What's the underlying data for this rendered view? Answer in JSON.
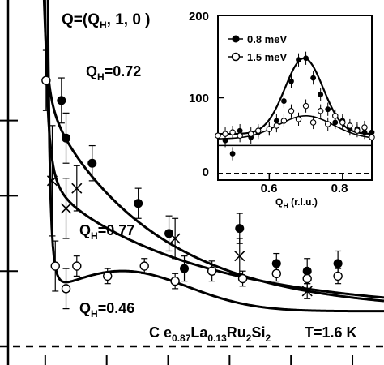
{
  "chart_data": [
    {
      "type": "scatter",
      "panel": "main",
      "ylim": [
        -10,
        140
      ],
      "xlim": [
        0,
        12.5
      ],
      "yticks": [
        0,
        30,
        60,
        90
      ],
      "xticks": [
        2,
        4,
        6,
        8,
        10,
        12
      ],
      "tick_labels_visible": false,
      "grid": false,
      "baseline": 0,
      "series": [
        {
          "name": "Q_H=0.72",
          "marker": "filled-circle",
          "points": [
            {
              "x": 2.0,
              "y": 98,
              "err": 9
            },
            {
              "x": 2.15,
              "y": 83,
              "err": 10
            },
            {
              "x": 3.0,
              "y": 73,
              "err": 7
            },
            {
              "x": 4.5,
              "y": 57,
              "err": 6
            },
            {
              "x": 5.5,
              "y": 45,
              "err": 7
            },
            {
              "x": 6.0,
              "y": 31,
              "err": 5
            },
            {
              "x": 7.8,
              "y": 47,
              "err": 6
            },
            {
              "x": 9.0,
              "y": 33,
              "err": 4
            },
            {
              "x": 10.0,
              "y": 30,
              "err": 5
            },
            {
              "x": 11.0,
              "y": 33,
              "err": 5
            }
          ]
        },
        {
          "name": "Q_H=0.77",
          "marker": "cross",
          "points": [
            {
              "x": 1.7,
              "y": 66,
              "err": 22
            },
            {
              "x": 2.15,
              "y": 55,
              "err": 12
            },
            {
              "x": 2.5,
              "y": 63,
              "err": 9
            },
            {
              "x": 5.7,
              "y": 43,
              "err": 8
            },
            {
              "x": 7.8,
              "y": 36,
              "err": 7
            },
            {
              "x": 10.0,
              "y": 22,
              "err": 3
            }
          ]
        },
        {
          "name": "Q_H=0.46",
          "marker": "open-circle",
          "points": [
            {
              "x": 1.5,
              "y": 106,
              "err": 12
            },
            {
              "x": 1.8,
              "y": 32,
              "err": 10
            },
            {
              "x": 2.15,
              "y": 23,
              "err": 8
            },
            {
              "x": 2.5,
              "y": 32,
              "err": 4
            },
            {
              "x": 3.5,
              "y": 28,
              "err": 3
            },
            {
              "x": 4.7,
              "y": 32,
              "err": 3
            },
            {
              "x": 5.7,
              "y": 26,
              "err": 3
            },
            {
              "x": 6.9,
              "y": 30,
              "err": 4
            },
            {
              "x": 7.9,
              "y": 27,
              "err": 3
            },
            {
              "x": 9.0,
              "y": 29,
              "err": 3
            },
            {
              "x": 10.0,
              "y": 27,
              "err": 4
            },
            {
              "x": 11.0,
              "y": 28,
              "err": 3
            }
          ]
        }
      ],
      "annotations": {
        "q_vector": "Q=(Q",
        "q_vector_sub": "H",
        "q_vector_rest": ", 1, 0 )",
        "label_072": "=0.72",
        "label_077": "=0.77",
        "label_046": "=0.46",
        "label_q": "Q",
        "label_h": "H",
        "compound": [
          "C e",
          "0.87",
          "La",
          "0.13",
          "Ru",
          "2",
          "Si",
          "2"
        ],
        "temperature": "T=1.6 K"
      }
    },
    {
      "type": "line",
      "panel": "inset",
      "xlabel_main": "Q",
      "xlabel_sub": "H",
      "xlabel_rest": " (r.l.u.)",
      "xlim": [
        0.46,
        0.88
      ],
      "ylim": [
        0,
        200
      ],
      "xticks": [
        0.6,
        0.8
      ],
      "yticks": [
        0,
        100,
        200
      ],
      "tick_labels_x": [
        "0.6",
        "0.8"
      ],
      "tick_labels_y": [
        "0",
        "100",
        "200"
      ],
      "legend_position": "top-left",
      "grid": false,
      "series": [
        {
          "name": "0.8 meV",
          "marker": "filled-circle",
          "x": [
            0.46,
            0.48,
            0.5,
            0.52,
            0.55,
            0.57,
            0.6,
            0.62,
            0.64,
            0.66,
            0.68,
            0.7,
            0.72,
            0.74,
            0.76,
            0.78,
            0.8,
            0.82,
            0.84,
            0.86,
            0.88
          ],
          "y": [
            54,
            48,
            32,
            60,
            52,
            58,
            62,
            72,
            96,
            120,
            146,
            148,
            124,
            104,
            86,
            70,
            72,
            62,
            62,
            58,
            58
          ]
        },
        {
          "name": "1.5 meV",
          "marker": "open-circle",
          "x": [
            0.46,
            0.48,
            0.5,
            0.52,
            0.55,
            0.57,
            0.6,
            0.62,
            0.64,
            0.66,
            0.68,
            0.7,
            0.72,
            0.74,
            0.76,
            0.78,
            0.8,
            0.82,
            0.84,
            0.86,
            0.88
          ],
          "y": [
            54,
            56,
            58,
            54,
            56,
            60,
            62,
            66,
            72,
            84,
            74,
            90,
            70,
            84,
            68,
            78,
            70,
            66,
            60,
            64,
            52
          ]
        }
      ],
      "background_level": 42,
      "zero_level": 8
    }
  ]
}
